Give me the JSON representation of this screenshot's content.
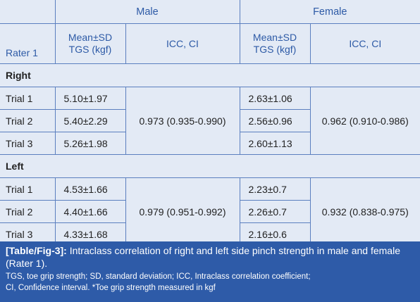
{
  "table": {
    "group_headers": {
      "male": "Male",
      "female": "Female"
    },
    "col_headers": {
      "rater": "Rater 1",
      "male_mean": "Mean±SD TGS (kgf)",
      "male_icc": "ICC, CI",
      "female_mean": "Mean±SD TGS (kgf)",
      "female_icc": "ICC, CI"
    },
    "sections": [
      {
        "label": "Right",
        "male_icc": "0.973 (0.935-0.990)",
        "female_icc": "0.962 (0.910-0.986)",
        "rows": [
          {
            "trial": "Trial 1",
            "male_mean": "5.10±1.97",
            "female_mean": "2.63±1.06"
          },
          {
            "trial": "Trial 2",
            "male_mean": "5.40±2.29",
            "female_mean": "2.56±0.96"
          },
          {
            "trial": "Trial 3",
            "male_mean": "5.26±1.98",
            "female_mean": "2.60±1.13"
          }
        ]
      },
      {
        "label": "Left",
        "male_icc": "0.979 (0.951-0.992)",
        "female_icc": "0.932 (0.838-0.975)",
        "rows": [
          {
            "trial": "Trial 1",
            "male_mean": "4.53±1.66",
            "female_mean": "2.23±0.7"
          },
          {
            "trial": "Trial 2",
            "male_mean": "4.40±1.66",
            "female_mean": "2.26±0.7"
          },
          {
            "trial": "Trial 3",
            "male_mean": "4.33±1.68",
            "female_mean": "2.16±0.6"
          }
        ]
      }
    ]
  },
  "caption": {
    "label": "[Table/Fig-3]:",
    "text": " Intraclass correlation of right and left side pinch strength in male and female (Rater 1).",
    "footnote_line1": "TGS, toe grip strength; SD, standard deviation; ICC, Intraclass correlation coefficient;",
    "footnote_line2": "CI, Confidence interval. *Toe grip strength measured in kgf"
  },
  "colors": {
    "header_text": "#2d5aa6",
    "border": "#5b7fbf",
    "background": "#e3eaf5",
    "caption_bg": "#2e5ba8"
  }
}
